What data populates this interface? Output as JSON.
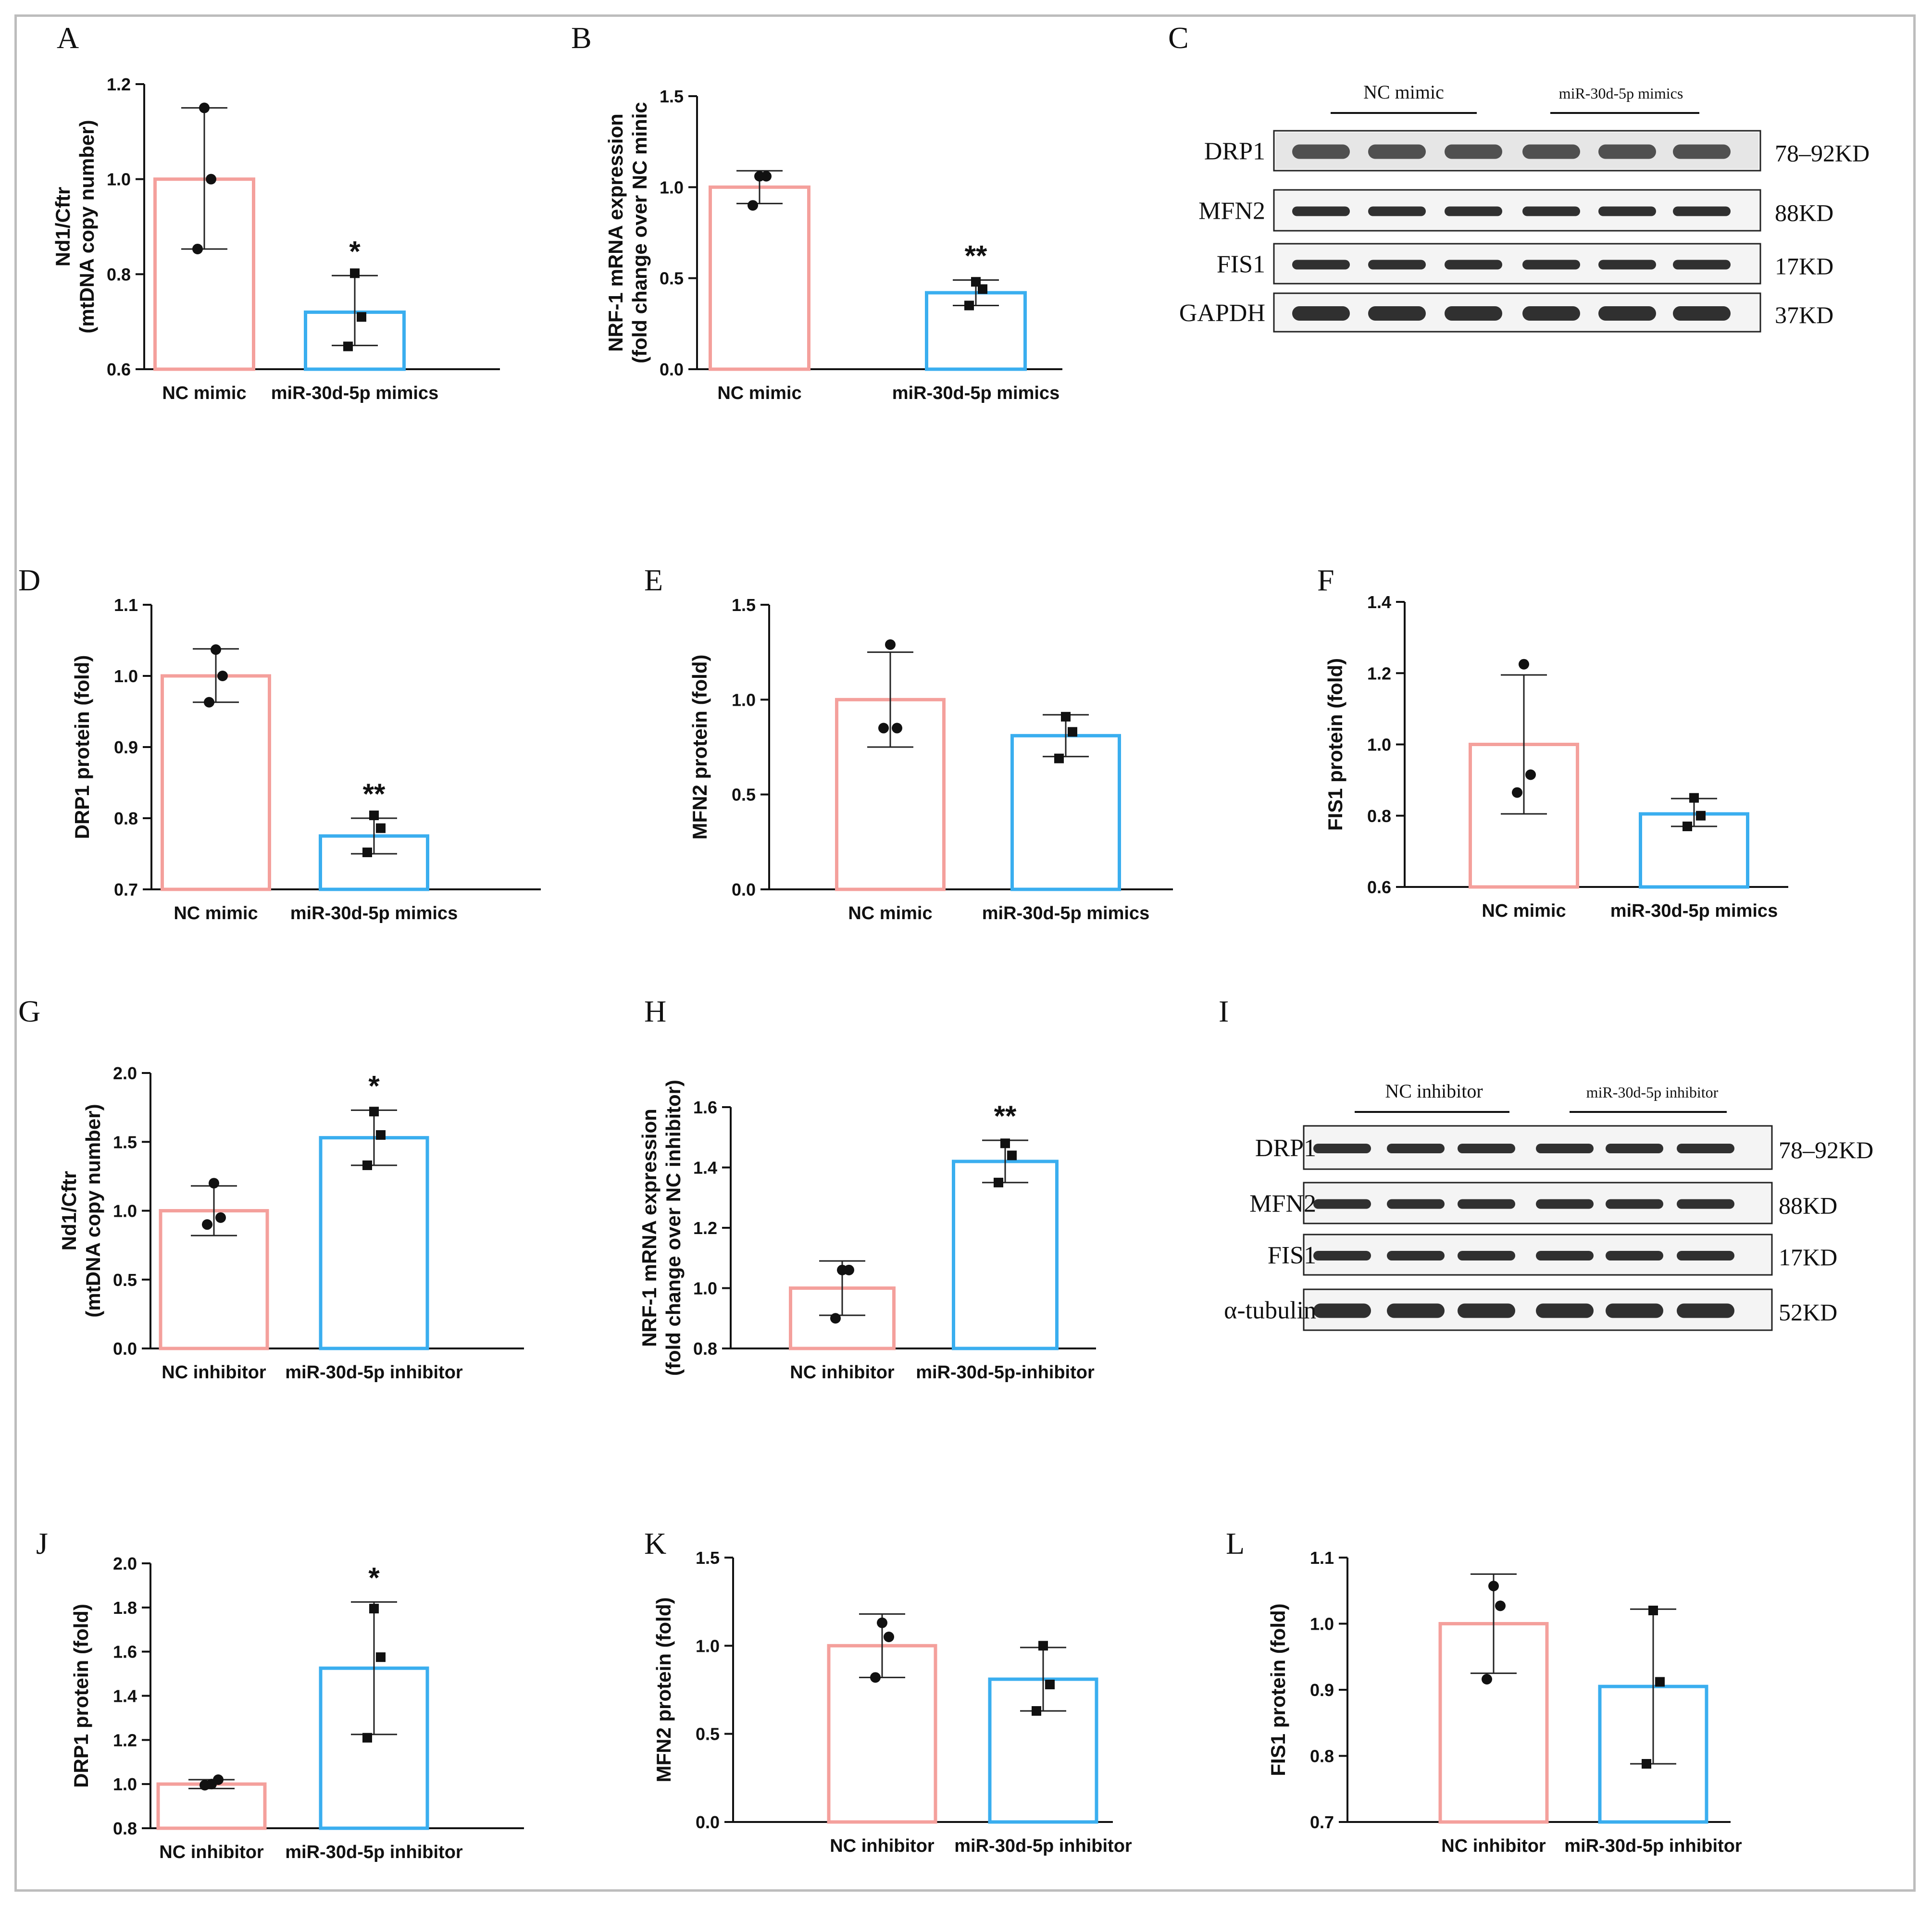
{
  "colors": {
    "nc": "#f4a09c",
    "mir": "#3aaeef",
    "axis": "#111111"
  },
  "chart_data": [
    {
      "panel": "A",
      "type": "bar",
      "ylabel": [
        "Nd1/Cftr",
        "(mtDNA copy number)"
      ],
      "ylim": [
        0.6,
        1.2
      ],
      "ticks": [
        "0.6",
        "0.8",
        "1.0",
        "1.2"
      ],
      "tickvals": [
        0.6,
        0.8,
        1.0,
        1.2
      ],
      "categories": [
        "NC mimic",
        "miR-30d-5p mimics"
      ],
      "series": [
        {
          "name": "NC mimic",
          "value": 1.0,
          "err": [
            0.853,
            1.15
          ],
          "points": [
            1.15,
            1.0,
            0.853
          ],
          "marker": "circle"
        },
        {
          "name": "miR-30d-5p mimics",
          "value": 0.72,
          "err": [
            0.65,
            0.797
          ],
          "points": [
            0.802,
            0.71,
            0.648
          ],
          "marker": "square",
          "sig": "*"
        }
      ]
    },
    {
      "panel": "B",
      "type": "bar",
      "ylabel": [
        "NRF-1 mRNA expression",
        "(fold change over NC minic"
      ],
      "ylim": [
        0,
        1.5
      ],
      "ticks": [
        "0.0",
        "0.5",
        "1.0",
        "1.5"
      ],
      "tickvals": [
        0,
        0.5,
        1.0,
        1.5
      ],
      "categories": [
        "NC mimic",
        "miR-30d-5p mimics"
      ],
      "series": [
        {
          "name": "NC mimic",
          "value": 1.0,
          "err": [
            0.91,
            1.09
          ],
          "points": [
            1.06,
            1.06,
            0.9
          ],
          "marker": "circle"
        },
        {
          "name": "miR-30d-5p mimics",
          "value": 0.42,
          "err": [
            0.35,
            0.49
          ],
          "points": [
            0.48,
            0.44,
            0.35
          ],
          "marker": "square",
          "sig": "**"
        }
      ]
    },
    {
      "panel": "D",
      "type": "bar",
      "ylabel": [
        "DRP1 protein (fold)"
      ],
      "ylim": [
        0.7,
        1.1
      ],
      "ticks": [
        "0.7",
        "0.8",
        "0.9",
        "1.0",
        "1.1"
      ],
      "tickvals": [
        0.7,
        0.8,
        0.9,
        1.0,
        1.1
      ],
      "categories": [
        "NC mimic",
        "miR-30d-5p mimics"
      ],
      "series": [
        {
          "name": "NC mimic",
          "value": 1.0,
          "err": [
            0.963,
            1.038
          ],
          "points": [
            1.037,
            1.0,
            0.963
          ],
          "marker": "circle"
        },
        {
          "name": "miR-30d-5p mimics",
          "value": 0.775,
          "err": [
            0.75,
            0.8
          ],
          "points": [
            0.804,
            0.786,
            0.752
          ],
          "marker": "square",
          "sig": "**"
        }
      ]
    },
    {
      "panel": "E",
      "type": "bar",
      "ylabel": [
        "MFN2 protein (fold)"
      ],
      "ylim": [
        0,
        1.5
      ],
      "ticks": [
        "0.0",
        "0.5",
        "1.0",
        "1.5"
      ],
      "tickvals": [
        0,
        0.5,
        1.0,
        1.5
      ],
      "categories": [
        "NC mimic",
        "miR-30d-5p mimics"
      ],
      "series": [
        {
          "name": "NC mimic",
          "value": 1.0,
          "err": [
            0.75,
            1.25
          ],
          "points": [
            1.29,
            0.85,
            0.85
          ],
          "marker": "circle"
        },
        {
          "name": "miR-30d-5p mimics",
          "value": 0.81,
          "err": [
            0.7,
            0.92
          ],
          "points": [
            0.91,
            0.83,
            0.69
          ],
          "marker": "square"
        }
      ]
    },
    {
      "panel": "F",
      "type": "bar",
      "ylabel": [
        "FIS1 protein (fold)"
      ],
      "ylim": [
        0.6,
        1.4
      ],
      "ticks": [
        "0.6",
        "0.8",
        "1.0",
        "1.2",
        "1.4"
      ],
      "tickvals": [
        0.6,
        0.8,
        1.0,
        1.2,
        1.4
      ],
      "categories": [
        "NC mimic",
        "miR-30d-5p mimics"
      ],
      "series": [
        {
          "name": "NC mimic",
          "value": 1.0,
          "err": [
            0.805,
            1.195
          ],
          "points": [
            1.225,
            0.915,
            0.865
          ],
          "marker": "circle"
        },
        {
          "name": "miR-30d-5p mimics",
          "value": 0.805,
          "err": [
            0.77,
            0.848
          ],
          "points": [
            0.85,
            0.8,
            0.77
          ],
          "marker": "square"
        }
      ]
    },
    {
      "panel": "G",
      "type": "bar",
      "ylabel": [
        "Nd1/Cftr",
        "(mtDNA copy number)"
      ],
      "ylim": [
        0,
        2.0
      ],
      "ticks": [
        "0.0",
        "0.5",
        "1.0",
        "1.5",
        "2.0"
      ],
      "tickvals": [
        0,
        0.5,
        1.0,
        1.5,
        2.0
      ],
      "categories": [
        "NC inhibitor",
        "miR-30d-5p inhibitor"
      ],
      "series": [
        {
          "name": "NC inhibitor",
          "value": 1.0,
          "err": [
            0.82,
            1.18
          ],
          "points": [
            1.2,
            0.95,
            0.9
          ],
          "marker": "circle"
        },
        {
          "name": "miR-30d-5p inhibitor",
          "value": 1.53,
          "err": [
            1.33,
            1.73
          ],
          "points": [
            1.72,
            1.55,
            1.33
          ],
          "marker": "square",
          "sig": "*"
        }
      ]
    },
    {
      "panel": "H",
      "type": "bar",
      "ylabel": [
        "NRF-1 mRNA expression",
        "(fold change over NC inhibitor)"
      ],
      "ylim": [
        0.8,
        1.6
      ],
      "ticks": [
        "0.8",
        "1.0",
        "1.2",
        "1.4",
        "1.6"
      ],
      "tickvals": [
        0.8,
        1.0,
        1.2,
        1.4,
        1.6
      ],
      "categories": [
        "NC inhibitor",
        "miR-30d-5p-inhibitor"
      ],
      "series": [
        {
          "name": "NC inhibitor",
          "value": 1.0,
          "err": [
            0.91,
            1.09
          ],
          "points": [
            1.06,
            1.06,
            0.9
          ],
          "marker": "circle"
        },
        {
          "name": "miR-30d-5p-inhibitor",
          "value": 1.42,
          "err": [
            1.35,
            1.49
          ],
          "points": [
            1.48,
            1.44,
            1.35
          ],
          "marker": "square",
          "sig": "**"
        }
      ]
    },
    {
      "panel": "J",
      "type": "bar",
      "ylabel": [
        "DRP1 protein (fold)"
      ],
      "ylim": [
        0.8,
        2.0
      ],
      "ticks": [
        "0.8",
        "1.0",
        "1.2",
        "1.4",
        "1.6",
        "1.8",
        "2.0"
      ],
      "tickvals": [
        0.8,
        1.0,
        1.2,
        1.4,
        1.6,
        1.8,
        2.0
      ],
      "categories": [
        "NC inhibitor",
        "miR-30d-5p inhibitor"
      ],
      "series": [
        {
          "name": "NC inhibitor",
          "value": 1.0,
          "err": [
            0.98,
            1.02
          ],
          "points": [
            1.0,
            1.02,
            0.995
          ],
          "marker": "circle"
        },
        {
          "name": "miR-30d-5p inhibitor",
          "value": 1.525,
          "err": [
            1.225,
            1.825
          ],
          "points": [
            1.795,
            1.575,
            1.21
          ],
          "marker": "square",
          "sig": "*"
        }
      ]
    },
    {
      "panel": "K",
      "type": "bar",
      "ylabel": [
        "MFN2 protein (fold)"
      ],
      "ylim": [
        0,
        1.5
      ],
      "ticks": [
        "0.0",
        "0.5",
        "1.0",
        "1.5"
      ],
      "tickvals": [
        0,
        0.5,
        1.0,
        1.5
      ],
      "categories": [
        "NC inhibitor",
        "miR-30d-5p inhibitor"
      ],
      "series": [
        {
          "name": "NC inhibitor",
          "value": 1.0,
          "err": [
            0.82,
            1.18
          ],
          "points": [
            1.13,
            1.05,
            0.82
          ],
          "marker": "circle"
        },
        {
          "name": "miR-30d-5p inhibitor",
          "value": 0.81,
          "err": [
            0.63,
            0.99
          ],
          "points": [
            1.0,
            0.78,
            0.63
          ],
          "marker": "square"
        }
      ]
    },
    {
      "panel": "L",
      "type": "bar",
      "ylabel": [
        "FIS1 protein (fold)"
      ],
      "ylim": [
        0.7,
        1.1
      ],
      "ticks": [
        "0.7",
        "0.8",
        "0.9",
        "1.0",
        "1.1"
      ],
      "tickvals": [
        0.7,
        0.8,
        0.9,
        1.0,
        1.1
      ],
      "categories": [
        "NC inhibitor",
        "miR-30d-5p inhibitor"
      ],
      "series": [
        {
          "name": "NC inhibitor",
          "value": 1.0,
          "err": [
            0.925,
            1.075
          ],
          "points": [
            1.057,
            1.027,
            0.916
          ],
          "marker": "circle"
        },
        {
          "name": "miR-30d-5p inhibitor",
          "value": 0.905,
          "err": [
            0.788,
            1.022
          ],
          "points": [
            1.02,
            0.912,
            0.788
          ],
          "marker": "square"
        }
      ]
    }
  ],
  "blots": [
    {
      "panel": "C",
      "groups": [
        "NC mimic",
        "miR-30d-5p mimics"
      ],
      "rows": [
        {
          "name": "DRP1",
          "kd": "78–92KD"
        },
        {
          "name": "MFN2",
          "kd": "88KD"
        },
        {
          "name": "FIS1",
          "kd": "17KD"
        },
        {
          "name": "GAPDH",
          "kd": "37KD"
        }
      ]
    },
    {
      "panel": "I",
      "groups": [
        "NC inhibitor",
        "miR-30d-5p inhibitor"
      ],
      "rows": [
        {
          "name": "DRP1",
          "kd": "78–92KD"
        },
        {
          "name": "MFN2",
          "kd": "88KD"
        },
        {
          "name": "FIS1",
          "kd": "17KD"
        },
        {
          "name": "α-tubulin",
          "kd": "52KD"
        }
      ]
    }
  ]
}
